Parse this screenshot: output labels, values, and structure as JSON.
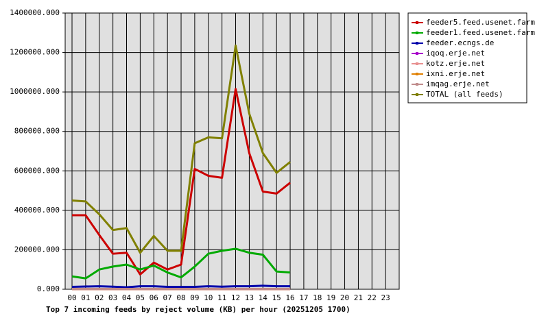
{
  "chart_data": {
    "type": "line",
    "title": "Top 7 incoming feeds by reject volume (KB) per hour (20251205 1700)",
    "categories": [
      "00",
      "01",
      "02",
      "03",
      "04",
      "05",
      "06",
      "07",
      "08",
      "09",
      "10",
      "11",
      "12",
      "13",
      "14",
      "15",
      "16",
      "17",
      "18",
      "19",
      "20",
      "21",
      "22",
      "23"
    ],
    "ylim": [
      0,
      1400000
    ],
    "yticks": [
      {
        "value": 0,
        "label": "0.000"
      },
      {
        "value": 200000,
        "label": "200000.000"
      },
      {
        "value": 400000,
        "label": "400000.000"
      },
      {
        "value": 600000,
        "label": "600000.000"
      },
      {
        "value": 800000,
        "label": "800000.000"
      },
      {
        "value": 1000000,
        "label": "1000000.000"
      },
      {
        "value": 1200000,
        "label": "1200000.000"
      },
      {
        "value": 1400000,
        "label": "1400000.000"
      }
    ],
    "grid": true,
    "series": [
      {
        "name": "feeder5.feed.usenet.farm",
        "color": "#cc0000",
        "values": [
          375000,
          375000,
          275000,
          180000,
          185000,
          75000,
          135000,
          100000,
          125000,
          610000,
          575000,
          565000,
          1015000,
          690000,
          495000,
          485000,
          540000,
          null,
          null,
          null,
          null,
          null,
          null,
          null
        ]
      },
      {
        "name": "feeder1.feed.usenet.farm",
        "color": "#00aa00",
        "values": [
          65000,
          55000,
          100000,
          115000,
          125000,
          100000,
          120000,
          85000,
          60000,
          115000,
          180000,
          195000,
          205000,
          185000,
          175000,
          90000,
          85000,
          null,
          null,
          null,
          null,
          null,
          null,
          null
        ]
      },
      {
        "name": "feeder.ecngs.de",
        "color": "#0000aa",
        "values": [
          12000,
          14000,
          15000,
          13000,
          10000,
          15000,
          15000,
          12000,
          12000,
          12000,
          15000,
          13000,
          15000,
          15000,
          18000,
          15000,
          15000,
          null,
          null,
          null,
          null,
          null,
          null,
          null
        ]
      },
      {
        "name": "iqoq.erje.net",
        "color": "#aa00cc",
        "values": [
          1000,
          1000,
          1000,
          1000,
          1000,
          1000,
          1000,
          1000,
          1000,
          1000,
          1000,
          1000,
          1000,
          1000,
          1000,
          1000,
          1000,
          null,
          null,
          null,
          null,
          null,
          null,
          null
        ]
      },
      {
        "name": "kotz.erje.net",
        "color": "#e89090",
        "values": [
          1000,
          1000,
          1000,
          1000,
          1000,
          1000,
          1000,
          1000,
          1000,
          1000,
          1000,
          1000,
          1000,
          1000,
          1000,
          1000,
          1000,
          null,
          null,
          null,
          null,
          null,
          null,
          null
        ]
      },
      {
        "name": "ixni.erje.net",
        "color": "#e08000",
        "values": [
          1000,
          1000,
          1000,
          1000,
          1000,
          1000,
          1000,
          1000,
          1000,
          1000,
          1000,
          1000,
          1000,
          1000,
          1000,
          1000,
          1000,
          null,
          null,
          null,
          null,
          null,
          null,
          null
        ]
      },
      {
        "name": "imqag.erje.net",
        "color": "#c08c8c",
        "values": [
          1000,
          1000,
          1000,
          1000,
          1000,
          1000,
          1000,
          1000,
          1000,
          1000,
          1000,
          1000,
          1000,
          1000,
          1000,
          1000,
          1000,
          null,
          null,
          null,
          null,
          null,
          null,
          null
        ]
      },
      {
        "name": "TOTAL (all feeds)",
        "color": "#808000",
        "values": [
          450000,
          445000,
          380000,
          300000,
          310000,
          185000,
          270000,
          195000,
          195000,
          740000,
          770000,
          765000,
          1235000,
          890000,
          690000,
          590000,
          645000,
          null,
          null,
          null,
          null,
          null,
          null,
          null
        ]
      }
    ]
  }
}
